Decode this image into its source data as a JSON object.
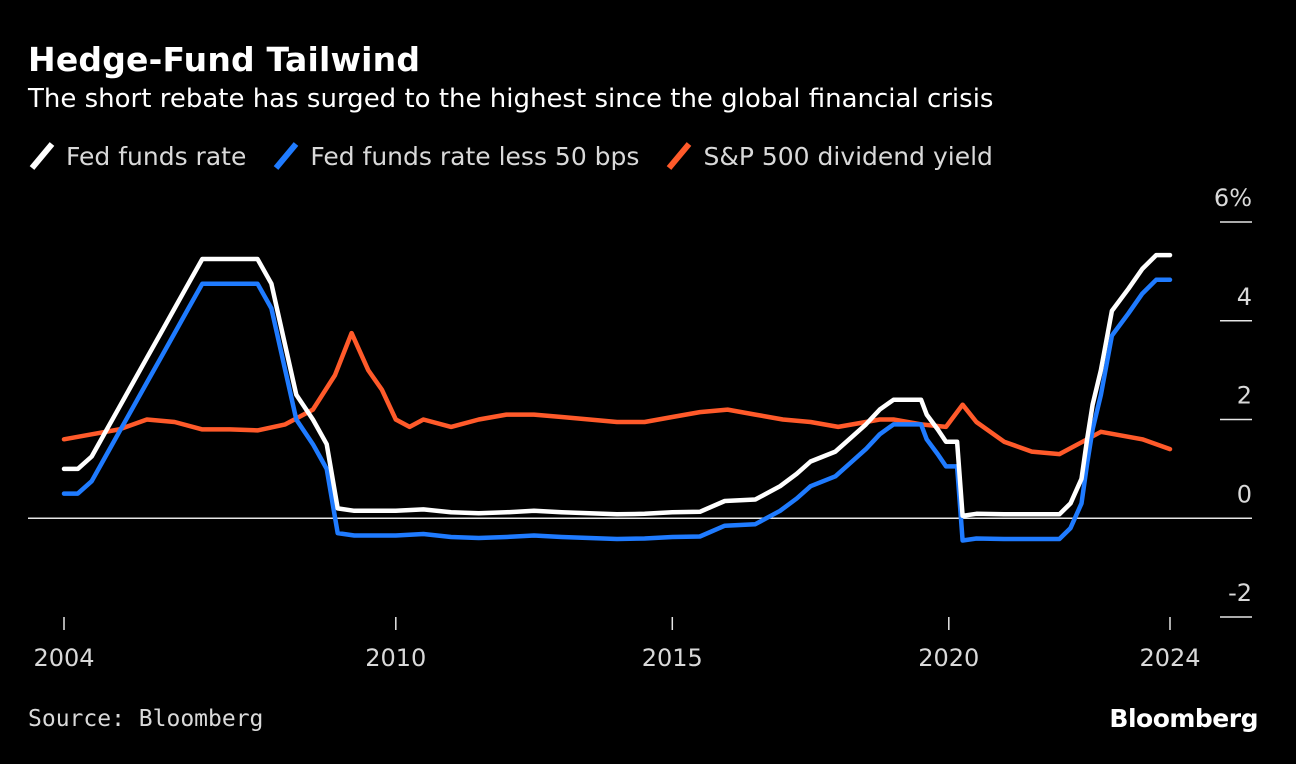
{
  "header": {
    "title": "Hedge-Fund Tailwind",
    "subtitle": "The short rebate has surged to the highest since the global financial crisis"
  },
  "legend": [
    {
      "label": "Fed funds rate",
      "color": "#ffffff"
    },
    {
      "label": "Fed funds rate less 50 bps",
      "color": "#1f7bff"
    },
    {
      "label": "S&P 500 dividend yield",
      "color": "#ff5a2a"
    }
  ],
  "footer": {
    "source": "Source: Bloomberg",
    "brand": "Bloomberg"
  },
  "chart_data": {
    "type": "line",
    "title": "Hedge-Fund Tailwind",
    "subtitle": "The short rebate has surged to the highest since the global financial crisis",
    "xlim": [
      2004,
      2024
    ],
    "ylim": [
      -2,
      6
    ],
    "x_ticks": [
      2004,
      2010,
      2015,
      2020,
      2024
    ],
    "y_ticks": [
      -2,
      0,
      2,
      4,
      6
    ],
    "y_tick_labels": [
      "-2",
      "0",
      "2",
      "4",
      "6%"
    ],
    "y_axis_side": "right",
    "zero_line": true,
    "grid": false,
    "legend_position": "top-left",
    "series": [
      {
        "name": "Fed funds rate",
        "color": "#ffffff",
        "points": [
          [
            2004.0,
            1.0
          ],
          [
            2004.25,
            1.0
          ],
          [
            2004.5,
            1.25
          ],
          [
            2004.75,
            1.75
          ],
          [
            2005.0,
            2.25
          ],
          [
            2005.25,
            2.75
          ],
          [
            2005.5,
            3.25
          ],
          [
            2005.75,
            3.75
          ],
          [
            2006.0,
            4.25
          ],
          [
            2006.25,
            4.75
          ],
          [
            2006.5,
            5.25
          ],
          [
            2006.75,
            5.25
          ],
          [
            2007.0,
            5.25
          ],
          [
            2007.25,
            5.25
          ],
          [
            2007.5,
            5.25
          ],
          [
            2007.75,
            4.75
          ],
          [
            2008.0,
            3.5
          ],
          [
            2008.2,
            2.5
          ],
          [
            2008.5,
            2.0
          ],
          [
            2008.75,
            1.5
          ],
          [
            2008.95,
            0.2
          ],
          [
            2009.25,
            0.15
          ],
          [
            2009.5,
            0.15
          ],
          [
            2010.0,
            0.15
          ],
          [
            2010.5,
            0.18
          ],
          [
            2011.0,
            0.12
          ],
          [
            2011.5,
            0.1
          ],
          [
            2012.0,
            0.12
          ],
          [
            2012.5,
            0.15
          ],
          [
            2013.0,
            0.12
          ],
          [
            2013.5,
            0.1
          ],
          [
            2014.0,
            0.08
          ],
          [
            2014.5,
            0.09
          ],
          [
            2015.0,
            0.12
          ],
          [
            2015.5,
            0.13
          ],
          [
            2015.95,
            0.35
          ],
          [
            2016.5,
            0.38
          ],
          [
            2016.95,
            0.65
          ],
          [
            2017.25,
            0.9
          ],
          [
            2017.5,
            1.15
          ],
          [
            2017.95,
            1.35
          ],
          [
            2018.25,
            1.65
          ],
          [
            2018.5,
            1.9
          ],
          [
            2018.75,
            2.2
          ],
          [
            2019.0,
            2.4
          ],
          [
            2019.5,
            2.4
          ],
          [
            2019.6,
            2.1
          ],
          [
            2019.8,
            1.8
          ],
          [
            2019.95,
            1.55
          ],
          [
            2020.15,
            1.55
          ],
          [
            2020.25,
            0.05
          ],
          [
            2020.5,
            0.09
          ],
          [
            2021.0,
            0.08
          ],
          [
            2021.5,
            0.08
          ],
          [
            2022.0,
            0.08
          ],
          [
            2022.2,
            0.3
          ],
          [
            2022.4,
            0.8
          ],
          [
            2022.5,
            1.6
          ],
          [
            2022.6,
            2.3
          ],
          [
            2022.75,
            3.0
          ],
          [
            2022.95,
            4.2
          ],
          [
            2023.25,
            4.65
          ],
          [
            2023.5,
            5.05
          ],
          [
            2023.75,
            5.33
          ],
          [
            2024.0,
            5.33
          ]
        ]
      },
      {
        "name": "Fed funds rate less 50 bps",
        "color": "#1f7bff",
        "points": [
          [
            2004.0,
            0.5
          ],
          [
            2004.25,
            0.5
          ],
          [
            2004.5,
            0.75
          ],
          [
            2004.75,
            1.25
          ],
          [
            2005.0,
            1.75
          ],
          [
            2005.25,
            2.25
          ],
          [
            2005.5,
            2.75
          ],
          [
            2005.75,
            3.25
          ],
          [
            2006.0,
            3.75
          ],
          [
            2006.25,
            4.25
          ],
          [
            2006.5,
            4.75
          ],
          [
            2006.75,
            4.75
          ],
          [
            2007.0,
            4.75
          ],
          [
            2007.25,
            4.75
          ],
          [
            2007.5,
            4.75
          ],
          [
            2007.75,
            4.25
          ],
          [
            2008.0,
            3.0
          ],
          [
            2008.2,
            2.0
          ],
          [
            2008.5,
            1.5
          ],
          [
            2008.75,
            1.0
          ],
          [
            2008.95,
            -0.3
          ],
          [
            2009.25,
            -0.35
          ],
          [
            2009.5,
            -0.35
          ],
          [
            2010.0,
            -0.35
          ],
          [
            2010.5,
            -0.32
          ],
          [
            2011.0,
            -0.38
          ],
          [
            2011.5,
            -0.4
          ],
          [
            2012.0,
            -0.38
          ],
          [
            2012.5,
            -0.35
          ],
          [
            2013.0,
            -0.38
          ],
          [
            2013.5,
            -0.4
          ],
          [
            2014.0,
            -0.42
          ],
          [
            2014.5,
            -0.41
          ],
          [
            2015.0,
            -0.38
          ],
          [
            2015.5,
            -0.37
          ],
          [
            2015.95,
            -0.15
          ],
          [
            2016.5,
            -0.12
          ],
          [
            2016.95,
            0.15
          ],
          [
            2017.25,
            0.4
          ],
          [
            2017.5,
            0.65
          ],
          [
            2017.95,
            0.85
          ],
          [
            2018.25,
            1.15
          ],
          [
            2018.5,
            1.4
          ],
          [
            2018.75,
            1.7
          ],
          [
            2019.0,
            1.9
          ],
          [
            2019.5,
            1.9
          ],
          [
            2019.6,
            1.6
          ],
          [
            2019.8,
            1.3
          ],
          [
            2019.95,
            1.05
          ],
          [
            2020.15,
            1.05
          ],
          [
            2020.25,
            -0.45
          ],
          [
            2020.5,
            -0.41
          ],
          [
            2021.0,
            -0.42
          ],
          [
            2021.5,
            -0.42
          ],
          [
            2022.0,
            -0.42
          ],
          [
            2022.2,
            -0.2
          ],
          [
            2022.4,
            0.3
          ],
          [
            2022.5,
            1.1
          ],
          [
            2022.6,
            1.8
          ],
          [
            2022.75,
            2.5
          ],
          [
            2022.95,
            3.7
          ],
          [
            2023.25,
            4.15
          ],
          [
            2023.5,
            4.55
          ],
          [
            2023.75,
            4.83
          ],
          [
            2024.0,
            4.83
          ]
        ]
      },
      {
        "name": "S&P 500 dividend yield",
        "color": "#ff5a2a",
        "points": [
          [
            2004.0,
            1.6
          ],
          [
            2004.5,
            1.7
          ],
          [
            2005.0,
            1.8
          ],
          [
            2005.5,
            2.0
          ],
          [
            2006.0,
            1.95
          ],
          [
            2006.5,
            1.8
          ],
          [
            2007.0,
            1.8
          ],
          [
            2007.5,
            1.78
          ],
          [
            2008.0,
            1.9
          ],
          [
            2008.5,
            2.2
          ],
          [
            2008.9,
            2.9
          ],
          [
            2009.2,
            3.75
          ],
          [
            2009.5,
            3.0
          ],
          [
            2009.75,
            2.6
          ],
          [
            2010.0,
            2.0
          ],
          [
            2010.25,
            1.85
          ],
          [
            2010.5,
            2.0
          ],
          [
            2011.0,
            1.85
          ],
          [
            2011.5,
            2.0
          ],
          [
            2012.0,
            2.1
          ],
          [
            2012.5,
            2.1
          ],
          [
            2013.0,
            2.05
          ],
          [
            2013.5,
            2.0
          ],
          [
            2014.0,
            1.95
          ],
          [
            2014.5,
            1.95
          ],
          [
            2015.0,
            2.05
          ],
          [
            2015.5,
            2.15
          ],
          [
            2016.0,
            2.2
          ],
          [
            2016.5,
            2.1
          ],
          [
            2017.0,
            2.0
          ],
          [
            2017.5,
            1.95
          ],
          [
            2018.0,
            1.85
          ],
          [
            2018.5,
            1.95
          ],
          [
            2018.75,
            2.0
          ],
          [
            2019.0,
            2.0
          ],
          [
            2019.5,
            1.9
          ],
          [
            2019.95,
            1.85
          ],
          [
            2020.25,
            2.3
          ],
          [
            2020.5,
            1.95
          ],
          [
            2021.0,
            1.55
          ],
          [
            2021.5,
            1.35
          ],
          [
            2022.0,
            1.3
          ],
          [
            2022.5,
            1.6
          ],
          [
            2022.75,
            1.75
          ],
          [
            2023.0,
            1.7
          ],
          [
            2023.5,
            1.6
          ],
          [
            2024.0,
            1.4
          ]
        ]
      }
    ]
  }
}
